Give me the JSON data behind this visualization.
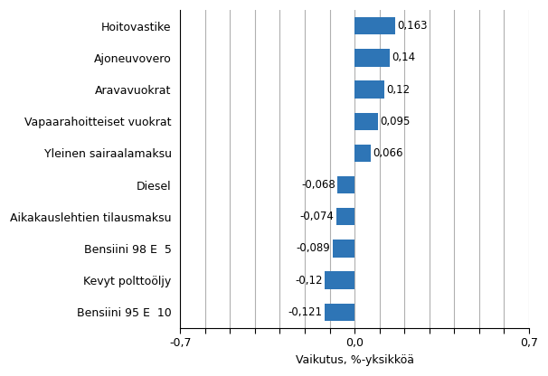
{
  "categories": [
    "Bensiini 95 E  10",
    "Kevyt polttoöljy",
    "Bensiini 98 E  5",
    "Aikakauslehtien tilausmaksu",
    "Diesel",
    "Yleinen sairaalamaksu",
    "Vapaarahoitteiset vuokrat",
    "Aravavuokrat",
    "Ajoneuvovero",
    "Hoitovastike"
  ],
  "values": [
    -0.121,
    -0.12,
    -0.089,
    -0.074,
    -0.068,
    0.066,
    0.095,
    0.12,
    0.14,
    0.163
  ],
  "value_labels": [
    "-0,121",
    "-0,12",
    "-0,089",
    "-0,074",
    "-0,068",
    "0,066",
    "0,095",
    "0,12",
    "0,14",
    "0,163"
  ],
  "bar_color": "#2E75B6",
  "xlim": [
    -0.7,
    0.7
  ],
  "xticks": [
    -0.7,
    -0.6,
    -0.5,
    -0.4,
    -0.3,
    -0.2,
    -0.1,
    0.0,
    0.1,
    0.2,
    0.3,
    0.4,
    0.5,
    0.6,
    0.7
  ],
  "xtick_labels": [
    "-0,7",
    "",
    "",
    "",
    "",
    "",
    "",
    "0,0",
    "",
    "",
    "",
    "",
    "",
    "",
    "0,7"
  ],
  "xlabel": "Vaikutus, %-yksikköä",
  "background_color": "#ffffff",
  "grid_color": "#b0b0b0",
  "label_fontsize": 9,
  "xlabel_fontsize": 9,
  "value_fontsize": 8.5,
  "bar_height": 0.55
}
